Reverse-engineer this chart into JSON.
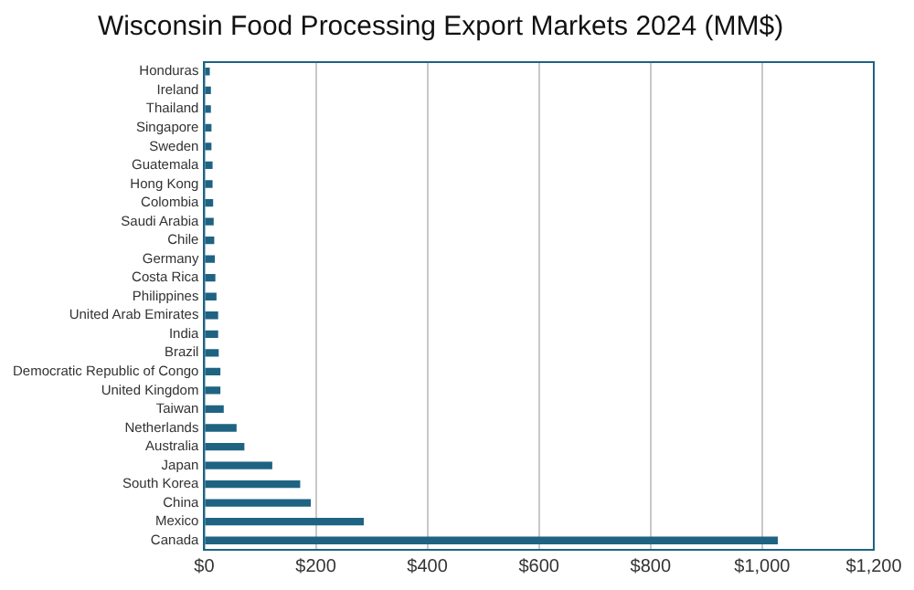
{
  "chart_data": {
    "type": "bar",
    "orientation": "horizontal",
    "title": "Wisconsin Food Processing Export Markets 2024 (MM$)",
    "categories": [
      "Honduras",
      "Ireland",
      "Thailand",
      "Singapore",
      "Sweden",
      "Guatemala",
      "Hong Kong",
      "Colombia",
      "Saudi Arabia",
      "Chile",
      "Germany",
      "Costa Rica",
      "Philippines",
      "United Arab Emirates",
      "India",
      "Brazil",
      "Democratic Republic of Congo",
      "United Kingdom",
      "Taiwan",
      "Netherlands",
      "Australia",
      "Japan",
      "South Korea",
      "China",
      "Mexico",
      "Canada"
    ],
    "values": [
      10,
      12,
      12,
      13,
      13,
      15,
      15,
      16,
      17,
      18,
      19,
      20,
      22,
      25,
      25,
      26,
      29,
      29,
      35,
      58,
      72,
      122,
      172,
      191,
      286,
      1028
    ],
    "color": "#1f6383",
    "xlim": [
      0,
      1200
    ],
    "xticks": [
      {
        "value": 0,
        "label": "$0"
      },
      {
        "value": 200,
        "label": "$200"
      },
      {
        "value": 400,
        "label": "$400"
      },
      {
        "value": 600,
        "label": "$600"
      },
      {
        "value": 800,
        "label": "$800"
      },
      {
        "value": 1000,
        "label": "$1,000"
      },
      {
        "value": 1200,
        "label": "$1,200"
      }
    ],
    "grid": "x",
    "legend": false
  }
}
